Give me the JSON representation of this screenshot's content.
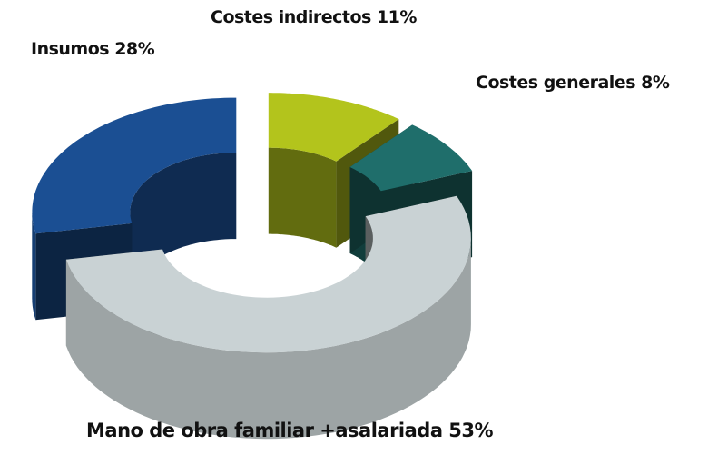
{
  "chart_data": {
    "type": "donut3d",
    "value_labels": [
      "Costes indirectos 11%",
      "Costes generales 8%",
      "Mano de obra familiar +asalariada 53%",
      "Insumos 28%"
    ],
    "values": [
      11,
      8,
      53,
      28
    ],
    "colors": [
      "#b3c41c",
      "#1f6e6b",
      "#c9d2d4",
      "#1b4f93"
    ]
  }
}
